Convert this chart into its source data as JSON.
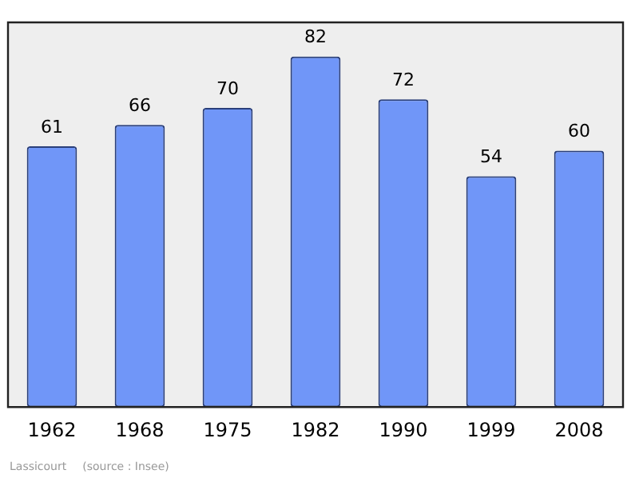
{
  "chart_data": {
    "type": "bar",
    "categories": [
      "1962",
      "1968",
      "1975",
      "1982",
      "1990",
      "1999",
      "2008"
    ],
    "values": [
      61,
      66,
      70,
      82,
      72,
      54,
      60
    ],
    "color": "#7096f8",
    "ylim": [
      0,
      90
    ],
    "data_labels": true,
    "grid": false,
    "legend": false,
    "tick_labels": "x",
    "annotations": [
      "Lassicourt",
      "(source : Insee)"
    ]
  }
}
